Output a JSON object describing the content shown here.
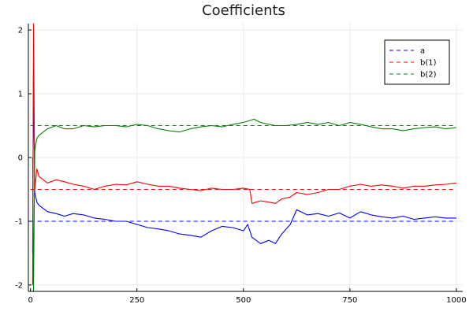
{
  "chart_data": {
    "type": "line",
    "title": "Coefficients",
    "xlabel": "",
    "ylabel": "",
    "xlim": [
      -5,
      1015
    ],
    "ylim": [
      -2.1,
      2.1
    ],
    "x_ticks": [
      0,
      250,
      500,
      750,
      1000
    ],
    "x_tick_labels": [
      "0",
      "250",
      "500",
      "750",
      "1000"
    ],
    "y_ticks": [
      -2,
      -1,
      0,
      1,
      2
    ],
    "y_tick_labels": [
      "-2",
      "-1",
      "0",
      "1",
      "2"
    ],
    "grid": true,
    "legend_position": "top-right",
    "reference_lines": [
      {
        "name": "a",
        "y": -1,
        "color": "#0000ff",
        "style": "dashed"
      },
      {
        "name": "b(1)",
        "y": -0.5,
        "color": "#ff0000",
        "style": "dashed"
      },
      {
        "name": "b(2)",
        "y": 0.5,
        "color": "#008000",
        "style": "dashed"
      }
    ],
    "series": [
      {
        "color": "#0000ff",
        "x": [
          5,
          7,
          10,
          15,
          20,
          30,
          40,
          60,
          80,
          100,
          125,
          150,
          175,
          200,
          225,
          250,
          275,
          300,
          325,
          350,
          375,
          400,
          425,
          450,
          475,
          500,
          510,
          520,
          540,
          560,
          575,
          590,
          610,
          625,
          650,
          675,
          700,
          725,
          750,
          775,
          800,
          825,
          850,
          875,
          900,
          925,
          950,
          975,
          1000
        ],
        "values": [
          -1.5,
          1.3,
          -0.55,
          -0.7,
          -0.75,
          -0.8,
          -0.85,
          -0.88,
          -0.92,
          -0.88,
          -0.9,
          -0.95,
          -0.97,
          -1.0,
          -1.0,
          -1.05,
          -1.1,
          -1.12,
          -1.15,
          -1.2,
          -1.22,
          -1.25,
          -1.15,
          -1.08,
          -1.1,
          -1.15,
          -1.05,
          -1.25,
          -1.35,
          -1.3,
          -1.35,
          -1.2,
          -1.05,
          -0.82,
          -0.9,
          -0.88,
          -0.92,
          -0.87,
          -0.95,
          -0.85,
          -0.9,
          -0.93,
          -0.95,
          -0.92,
          -0.97,
          -0.95,
          -0.93,
          -0.95,
          -0.95
        ]
      },
      {
        "color": "#ff0000",
        "x": [
          5,
          7,
          10,
          15,
          20,
          30,
          40,
          60,
          80,
          100,
          125,
          150,
          175,
          200,
          225,
          250,
          275,
          300,
          325,
          350,
          375,
          400,
          425,
          450,
          475,
          500,
          515,
          520,
          540,
          560,
          575,
          590,
          610,
          625,
          650,
          675,
          700,
          725,
          750,
          775,
          800,
          825,
          850,
          875,
          900,
          925,
          950,
          975,
          1000
        ],
        "values": [
          -2.0,
          2.1,
          -0.5,
          -0.18,
          -0.3,
          -0.35,
          -0.4,
          -0.35,
          -0.38,
          -0.42,
          -0.45,
          -0.5,
          -0.45,
          -0.42,
          -0.43,
          -0.38,
          -0.42,
          -0.45,
          -0.45,
          -0.48,
          -0.5,
          -0.52,
          -0.48,
          -0.5,
          -0.5,
          -0.48,
          -0.5,
          -0.72,
          -0.68,
          -0.7,
          -0.72,
          -0.65,
          -0.62,
          -0.55,
          -0.58,
          -0.55,
          -0.5,
          -0.5,
          -0.45,
          -0.42,
          -0.45,
          -0.43,
          -0.45,
          -0.48,
          -0.45,
          -0.45,
          -0.43,
          -0.42,
          -0.4
        ]
      },
      {
        "color": "#008000",
        "x": [
          5,
          7,
          10,
          12,
          15,
          20,
          30,
          40,
          60,
          80,
          100,
          125,
          150,
          175,
          200,
          225,
          250,
          275,
          300,
          325,
          350,
          375,
          400,
          425,
          450,
          475,
          500,
          515,
          525,
          540,
          560,
          575,
          600,
          625,
          650,
          675,
          700,
          725,
          750,
          775,
          800,
          825,
          850,
          875,
          900,
          925,
          950,
          975,
          1000
        ],
        "values": [
          0.0,
          -2.1,
          0.1,
          0.2,
          0.3,
          0.35,
          0.4,
          0.45,
          0.5,
          0.45,
          0.45,
          0.5,
          0.48,
          0.5,
          0.5,
          0.48,
          0.52,
          0.5,
          0.45,
          0.42,
          0.4,
          0.45,
          0.48,
          0.5,
          0.48,
          0.52,
          0.55,
          0.58,
          0.6,
          0.55,
          0.52,
          0.5,
          0.5,
          0.52,
          0.55,
          0.52,
          0.55,
          0.5,
          0.55,
          0.52,
          0.48,
          0.45,
          0.45,
          0.42,
          0.45,
          0.47,
          0.48,
          0.45,
          0.47
        ]
      }
    ]
  }
}
